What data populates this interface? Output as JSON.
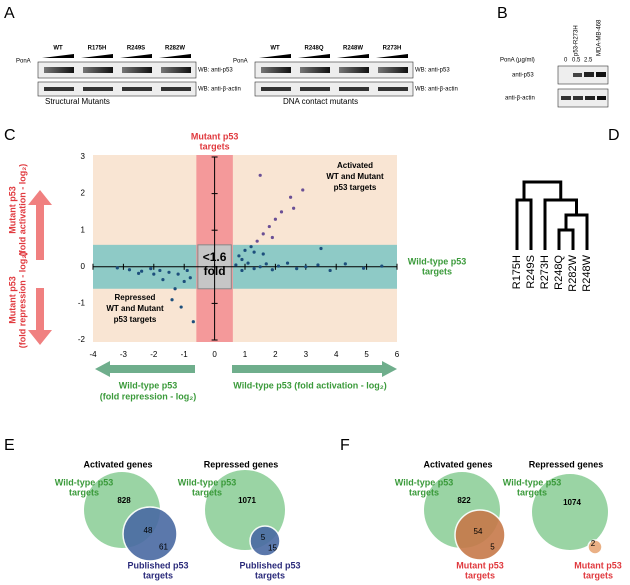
{
  "panels": {
    "A": {
      "letter": "A",
      "blot1": {
        "ponA": "PonA",
        "lanes": [
          "WT",
          "R175H",
          "R249S",
          "R282W"
        ],
        "wb1": "WB: anti-p53",
        "wb2": "WB: anti-β-actin",
        "caption": "Structural Mutants"
      },
      "blot2": {
        "ponA": "PonA",
        "lanes": [
          "WT",
          "R248Q",
          "R248W",
          "R273H"
        ],
        "wb1": "WB: anti-p53",
        "wb2": "WB: anti-β-actin",
        "caption": "DNA contact mutants"
      }
    },
    "B": {
      "letter": "B",
      "lanes": [
        "p53-R273H",
        "MDA-MB-468"
      ],
      "ponA": "PonA (µg/ml)",
      "doses": [
        "0",
        "0.5",
        "2.5"
      ],
      "wb1": "anti-p53",
      "wb2": "anti-β-actin"
    },
    "C": {
      "letter": "C",
      "xlim": [
        -4,
        6
      ],
      "ylim": [
        -2,
        3
      ],
      "xticks": [
        -4,
        -3,
        -2,
        -1,
        0,
        1,
        2,
        3,
        4,
        5,
        6
      ],
      "yticks": [
        -2,
        -1,
        0,
        1,
        2,
        3
      ],
      "mutant_label": [
        "Mutant p53",
        "targets"
      ],
      "activated_label": [
        "Activated",
        "WT and Mutant",
        "p53 targets"
      ],
      "fold_label": [
        "<1.6",
        "fold"
      ],
      "wt_label": [
        "Wild-type p53",
        "targets"
      ],
      "repressed_label": [
        "Repressed",
        "WT and Mutant",
        "p53 targets"
      ],
      "y_up_label": [
        "Mutant p53",
        "(fold activation - log₂)"
      ],
      "y_down_label": [
        "Mutant p53",
        "(fold repression - log₂)"
      ],
      "x_left_label": [
        "Wild-type p53",
        "(fold repression - log₂)"
      ],
      "x_right_label": "Wild-type p53 (fold activation - log₂)",
      "points": {
        "x": [
          0.7,
          0.9,
          1.1,
          1.3,
          1.5,
          1.7,
          1.9,
          2.1,
          2.4,
          2.7,
          3.0,
          3.4,
          3.8,
          4.3,
          4.9,
          5.5,
          0.8,
          1.0,
          1.2,
          1.4,
          1.6,
          1.8,
          2.0,
          2.2,
          2.5,
          1.3,
          1.9,
          2.6,
          3.5,
          2.9,
          1.5,
          -0.9,
          -1.2,
          -1.5,
          -1.8,
          -2.1,
          -2.4,
          -2.8,
          -3.2,
          -1.0,
          -1.3,
          -1.7,
          -0.7,
          -1.4,
          -2.0,
          -0.8,
          -1.1,
          -2.5,
          0.9,
          1.6
        ],
        "y": [
          0.05,
          -0.1,
          0.1,
          -0.05,
          0.0,
          0.08,
          -0.08,
          0.02,
          0.1,
          -0.05,
          0.0,
          0.05,
          -0.1,
          0.08,
          -0.04,
          0.02,
          0.3,
          0.45,
          0.55,
          0.7,
          0.9,
          1.1,
          1.3,
          1.5,
          1.9,
          0.4,
          0.8,
          1.6,
          0.5,
          2.1,
          2.5,
          -0.1,
          -0.2,
          -0.15,
          -0.1,
          -0.05,
          -0.12,
          -0.08,
          -0.03,
          -0.4,
          -0.6,
          -0.35,
          -1.5,
          -0.9,
          -0.2,
          -0.3,
          -1.1,
          -0.18,
          0.2,
          0.35
        ]
      }
    },
    "D": {
      "letter": "D",
      "leaves": [
        "R175H",
        "R249S",
        "R273H",
        "R248Q",
        "R282W",
        "R248W"
      ]
    },
    "E": {
      "letter": "E",
      "act": {
        "title": "Activated genes",
        "wt": [
          "Wild-type p53",
          "targets"
        ],
        "only": "828",
        "both": "48",
        "other": "61",
        "other_label": [
          "Published p53",
          "targets"
        ]
      },
      "rep": {
        "title": "Repressed genes",
        "wt": [
          "Wild-type p53",
          "targets"
        ],
        "only": "1071",
        "both": "5",
        "other": "15",
        "other_label": [
          "Published p53",
          "targets"
        ]
      }
    },
    "F": {
      "letter": "F",
      "act": {
        "title": "Activated genes",
        "wt": [
          "Wild-type p53",
          "targets"
        ],
        "only": "822",
        "both": "54",
        "other": "5",
        "other_label": [
          "Mutant p53",
          "targets"
        ]
      },
      "rep": {
        "title": "Repressed genes",
        "wt": [
          "Wild-type p53",
          "targets"
        ],
        "only": "1074",
        "both": "2",
        "other_label": [
          "Mutant p53",
          "targets"
        ]
      }
    }
  }
}
